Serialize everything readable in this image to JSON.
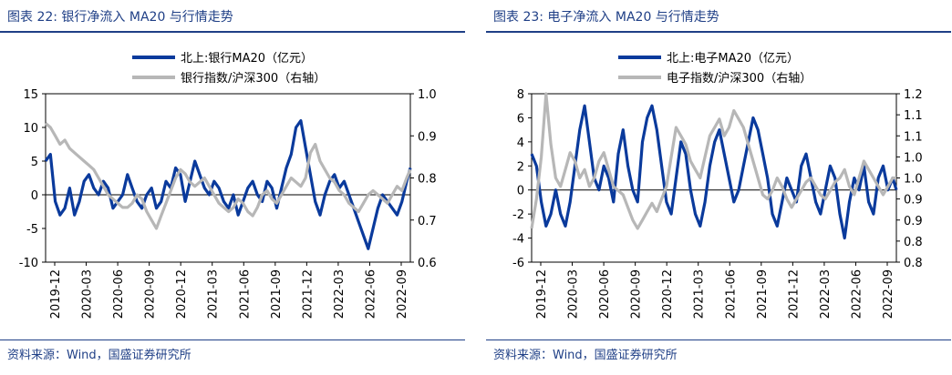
{
  "panels": [
    {
      "title": "图表 22:  银行净流入 MA20 与行情走势",
      "source": "资料来源：Wind，国盛证券研究所",
      "legend": [
        "北上:银行MA20（亿元）",
        "银行指数/沪深300（右轴）"
      ],
      "colors": {
        "primary": "#0a3a9c",
        "secondary": "#b7b7b7"
      }
    },
    {
      "title": "图表 23:  电子净流入 MA20 与行情走势",
      "source": "资料来源：Wind，国盛证券研究所",
      "legend": [
        "北上:电子MA20（亿元）",
        "电子指数/沪深300（右轴）"
      ],
      "colors": {
        "primary": "#0a3a9c",
        "secondary": "#b7b7b7"
      }
    }
  ],
  "chart_data": [
    {
      "type": "line",
      "title": "银行净流入 MA20 与行情走势",
      "x_ticks": [
        "2019-12",
        "2020-03",
        "2020-06",
        "2020-09",
        "2020-12",
        "2021-03",
        "2021-06",
        "2021-09",
        "2021-12",
        "2022-03",
        "2022-06",
        "2022-09"
      ],
      "x_range": [
        2019.92,
        2022.95
      ],
      "ylim_left": [
        -10,
        15
      ],
      "yticks_left": [
        "15",
        "10",
        "5",
        "0",
        "-5",
        "-10"
      ],
      "ylim_right": [
        0.6,
        1.0
      ],
      "yticks_right": [
        "1.0",
        "0.9",
        "0.8",
        "0.7",
        "0.6"
      ],
      "series": [
        {
          "name": "北上:银行MA20（亿元）",
          "axis": "left",
          "x": [
            2019.92,
            2019.96,
            2020.0,
            2020.04,
            2020.08,
            2020.12,
            2020.16,
            2020.2,
            2020.24,
            2020.28,
            2020.32,
            2020.36,
            2020.4,
            2020.44,
            2020.48,
            2020.52,
            2020.56,
            2020.6,
            2020.64,
            2020.68,
            2020.72,
            2020.76,
            2020.8,
            2020.84,
            2020.88,
            2020.92,
            2020.96,
            2021.0,
            2021.04,
            2021.08,
            2021.12,
            2021.16,
            2021.2,
            2021.24,
            2021.28,
            2021.32,
            2021.36,
            2021.4,
            2021.44,
            2021.48,
            2021.52,
            2021.56,
            2021.6,
            2021.64,
            2021.68,
            2021.72,
            2021.76,
            2021.8,
            2021.84,
            2021.88,
            2021.92,
            2021.96,
            2022.0,
            2022.04,
            2022.08,
            2022.12,
            2022.16,
            2022.2,
            2022.24,
            2022.28,
            2022.32,
            2022.36,
            2022.4,
            2022.44,
            2022.48,
            2022.52,
            2022.56,
            2022.6,
            2022.64,
            2022.68,
            2022.72,
            2022.76,
            2022.8,
            2022.84,
            2022.88,
            2022.92,
            2022.95
          ],
          "values": [
            5,
            6,
            -1,
            -3,
            -2,
            1,
            -3,
            -1,
            2,
            3,
            1,
            0,
            2,
            1,
            -2,
            -1,
            0,
            3,
            1,
            -1,
            -2,
            0,
            1,
            -2,
            -1,
            2,
            1,
            4,
            3,
            -1,
            2,
            5,
            3,
            1,
            0,
            2,
            1,
            -1,
            -2,
            0,
            -3,
            -1,
            1,
            2,
            0,
            -1,
            2,
            1,
            -2,
            1,
            4,
            6,
            10,
            11,
            7,
            3,
            -1,
            -3,
            0,
            2,
            3,
            1,
            2,
            0,
            -2,
            -4,
            -6,
            -8,
            -5,
            -2,
            0,
            -1,
            -2,
            -3,
            -1,
            2,
            4
          ]
        },
        {
          "name": "银行指数/沪深300（右轴）",
          "axis": "right",
          "x": [
            2019.92,
            2019.96,
            2020.0,
            2020.04,
            2020.08,
            2020.12,
            2020.16,
            2020.2,
            2020.24,
            2020.28,
            2020.32,
            2020.36,
            2020.4,
            2020.44,
            2020.48,
            2020.52,
            2020.56,
            2020.6,
            2020.64,
            2020.68,
            2020.72,
            2020.76,
            2020.8,
            2020.84,
            2020.88,
            2020.92,
            2020.96,
            2021.0,
            2021.04,
            2021.08,
            2021.12,
            2021.16,
            2021.2,
            2021.24,
            2021.28,
            2021.32,
            2021.36,
            2021.4,
            2021.44,
            2021.48,
            2021.52,
            2021.56,
            2021.6,
            2021.64,
            2021.68,
            2021.72,
            2021.76,
            2021.8,
            2021.84,
            2021.88,
            2021.92,
            2021.96,
            2022.0,
            2022.04,
            2022.08,
            2022.12,
            2022.16,
            2022.2,
            2022.24,
            2022.28,
            2022.32,
            2022.36,
            2022.4,
            2022.44,
            2022.48,
            2022.52,
            2022.56,
            2022.6,
            2022.64,
            2022.68,
            2022.72,
            2022.76,
            2022.8,
            2022.84,
            2022.88,
            2022.92,
            2022.95
          ],
          "values": [
            0.93,
            0.92,
            0.9,
            0.88,
            0.89,
            0.87,
            0.86,
            0.85,
            0.84,
            0.83,
            0.82,
            0.8,
            0.78,
            0.76,
            0.75,
            0.74,
            0.73,
            0.73,
            0.74,
            0.76,
            0.75,
            0.72,
            0.7,
            0.68,
            0.71,
            0.74,
            0.77,
            0.8,
            0.82,
            0.81,
            0.79,
            0.78,
            0.79,
            0.8,
            0.78,
            0.76,
            0.74,
            0.73,
            0.72,
            0.73,
            0.75,
            0.74,
            0.72,
            0.71,
            0.73,
            0.76,
            0.77,
            0.75,
            0.74,
            0.76,
            0.78,
            0.8,
            0.79,
            0.78,
            0.8,
            0.86,
            0.88,
            0.84,
            0.82,
            0.8,
            0.79,
            0.77,
            0.76,
            0.74,
            0.73,
            0.72,
            0.74,
            0.76,
            0.77,
            0.76,
            0.75,
            0.74,
            0.76,
            0.78,
            0.77,
            0.8,
            0.82
          ]
        }
      ]
    },
    {
      "type": "line",
      "title": "电子净流入 MA20 与行情走势",
      "x_ticks": [
        "2019-12",
        "2020-03",
        "2020-06",
        "2020-09",
        "2020-12",
        "2021-03",
        "2021-06",
        "2021-09",
        "2021-12",
        "2022-03",
        "2022-06",
        "2022-09"
      ],
      "x_range": [
        2019.92,
        2022.95
      ],
      "ylim_left": [
        -6,
        8
      ],
      "yticks_left": [
        "8",
        "6",
        "4",
        "2",
        "0",
        "-2",
        "-4",
        "-6"
      ],
      "ylim_right": [
        0.8,
        1.2
      ],
      "yticks_right": [
        "1.2",
        "1.1",
        "1.1",
        "1.0",
        "1.0",
        "0.9",
        "0.9",
        "0.8",
        "0.8"
      ],
      "series": [
        {
          "name": "北上:电子MA20（亿元）",
          "axis": "left",
          "x": [
            2019.92,
            2019.96,
            2020.0,
            2020.04,
            2020.08,
            2020.12,
            2020.16,
            2020.2,
            2020.24,
            2020.28,
            2020.32,
            2020.36,
            2020.4,
            2020.44,
            2020.48,
            2020.52,
            2020.56,
            2020.6,
            2020.64,
            2020.68,
            2020.72,
            2020.76,
            2020.8,
            2020.84,
            2020.88,
            2020.92,
            2020.96,
            2021.0,
            2021.04,
            2021.08,
            2021.12,
            2021.16,
            2021.2,
            2021.24,
            2021.28,
            2021.32,
            2021.36,
            2021.4,
            2021.44,
            2021.48,
            2021.52,
            2021.56,
            2021.6,
            2021.64,
            2021.68,
            2021.72,
            2021.76,
            2021.8,
            2021.84,
            2021.88,
            2021.92,
            2021.96,
            2022.0,
            2022.04,
            2022.08,
            2022.12,
            2022.16,
            2022.2,
            2022.24,
            2022.28,
            2022.32,
            2022.36,
            2022.4,
            2022.44,
            2022.48,
            2022.52,
            2022.56,
            2022.6,
            2022.64,
            2022.68,
            2022.72,
            2022.76,
            2022.8,
            2022.84,
            2022.88,
            2022.92,
            2022.95
          ],
          "values": [
            3,
            2,
            -1,
            -3,
            -2,
            0,
            -2,
            -3,
            -1,
            2,
            5,
            7,
            4,
            1,
            0,
            2,
            1,
            -1,
            3,
            5,
            2,
            0,
            -1,
            4,
            6,
            7,
            5,
            2,
            -1,
            -2,
            1,
            4,
            3,
            0,
            -2,
            -3,
            -1,
            2,
            4,
            5,
            3,
            1,
            -1,
            0,
            2,
            4,
            6,
            5,
            3,
            1,
            -2,
            -3,
            -1,
            1,
            0,
            -1,
            2,
            3,
            1,
            -1,
            -2,
            0,
            2,
            1,
            -2,
            -4,
            -1,
            1,
            0,
            2,
            -1,
            -2,
            1,
            2,
            0,
            1,
            0
          ]
        },
        {
          "name": "电子指数/沪深300（右轴）",
          "axis": "right",
          "x": [
            2019.92,
            2019.96,
            2020.0,
            2020.04,
            2020.08,
            2020.12,
            2020.16,
            2020.2,
            2020.24,
            2020.28,
            2020.32,
            2020.36,
            2020.4,
            2020.44,
            2020.48,
            2020.52,
            2020.56,
            2020.6,
            2020.64,
            2020.68,
            2020.72,
            2020.76,
            2020.8,
            2020.84,
            2020.88,
            2020.92,
            2020.96,
            2021.0,
            2021.04,
            2021.08,
            2021.12,
            2021.16,
            2021.2,
            2021.24,
            2021.28,
            2021.32,
            2021.36,
            2021.4,
            2021.44,
            2021.48,
            2021.52,
            2021.56,
            2021.6,
            2021.64,
            2021.68,
            2021.72,
            2021.76,
            2021.8,
            2021.84,
            2021.88,
            2021.92,
            2021.96,
            2022.0,
            2022.04,
            2022.08,
            2022.12,
            2022.16,
            2022.2,
            2022.24,
            2022.28,
            2022.32,
            2022.36,
            2022.4,
            2022.44,
            2022.48,
            2022.52,
            2022.56,
            2022.6,
            2022.64,
            2022.68,
            2022.72,
            2022.76,
            2022.8,
            2022.84,
            2022.88,
            2022.92,
            2022.95
          ],
          "values": [
            0.88,
            0.95,
            1.05,
            1.2,
            1.08,
            1.0,
            0.98,
            1.02,
            1.06,
            1.04,
            1.0,
            1.02,
            0.98,
            1.0,
            1.04,
            1.06,
            1.02,
            0.98,
            0.97,
            0.96,
            0.93,
            0.9,
            0.88,
            0.9,
            0.92,
            0.94,
            0.92,
            0.95,
            0.98,
            1.05,
            1.12,
            1.1,
            1.08,
            1.04,
            1.02,
            1.0,
            1.05,
            1.1,
            1.12,
            1.14,
            1.1,
            1.12,
            1.16,
            1.14,
            1.12,
            1.08,
            1.04,
            1.0,
            0.96,
            0.95,
            0.97,
            1.0,
            0.98,
            0.95,
            0.93,
            0.95,
            0.97,
            0.99,
            1.0,
            0.98,
            0.96,
            0.95,
            0.97,
            0.99,
            1.0,
            1.02,
            0.98,
            0.96,
            1.0,
            1.04,
            1.02,
            1.0,
            0.98,
            0.96,
            0.98,
            1.0,
            1.0
          ]
        }
      ]
    }
  ]
}
